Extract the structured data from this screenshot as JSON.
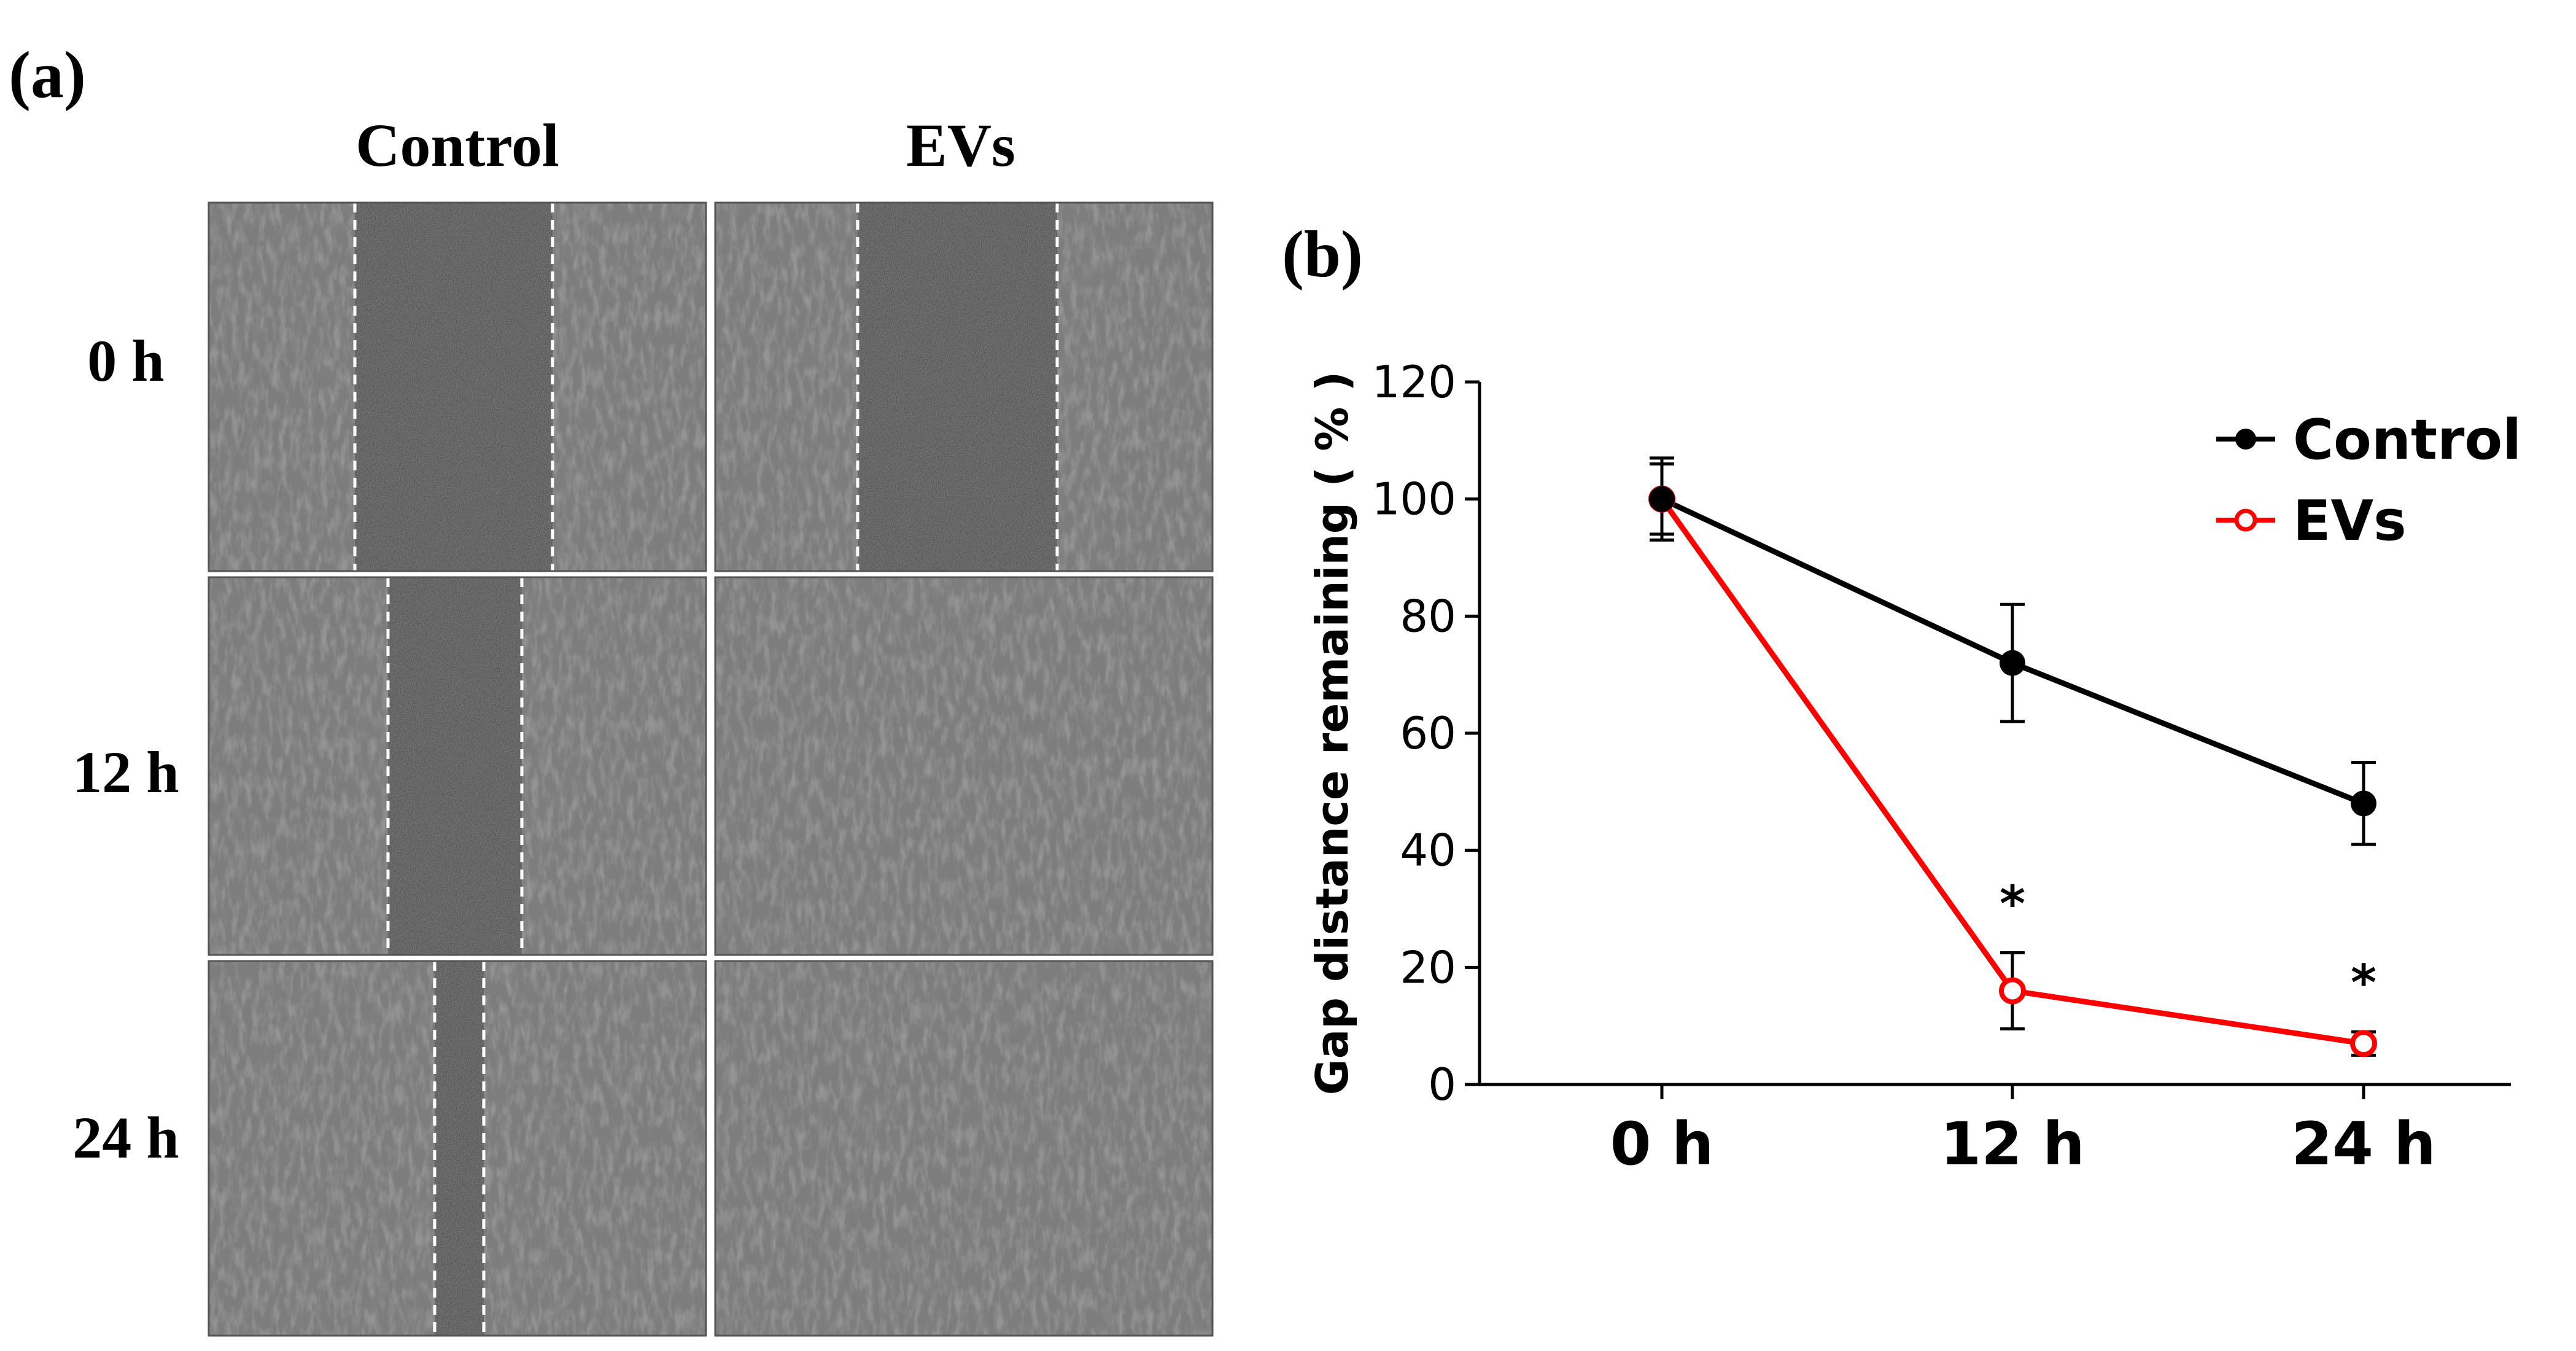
{
  "panel_a": {
    "label": "(a)",
    "columns": [
      "Control",
      "EVs"
    ],
    "rows": [
      "0 h",
      "12 h",
      "24 h"
    ]
  },
  "panel_b": {
    "label": "(b)"
  },
  "chart_data": {
    "type": "line",
    "title": "",
    "xlabel": "",
    "ylabel": "Gap distance remaining ( % )",
    "categories": [
      "0 h",
      "12 h",
      "24 h"
    ],
    "ylim": [
      0,
      120
    ],
    "yticks": [
      0,
      20,
      40,
      60,
      80,
      100,
      120
    ],
    "legend_position": "top-right",
    "series": [
      {
        "name": "Control",
        "color": "#000000",
        "marker": "filled-circle",
        "values": [
          100,
          72,
          48
        ],
        "errors": [
          7,
          10,
          7
        ]
      },
      {
        "name": "EVs",
        "color": "#ff0000",
        "marker": "open-circle",
        "values": [
          100,
          16,
          7
        ],
        "errors": [
          6,
          6.5,
          2
        ]
      }
    ],
    "annotations": [
      {
        "category": "12 h",
        "text": "*"
      },
      {
        "category": "24 h",
        "text": "*"
      }
    ]
  }
}
